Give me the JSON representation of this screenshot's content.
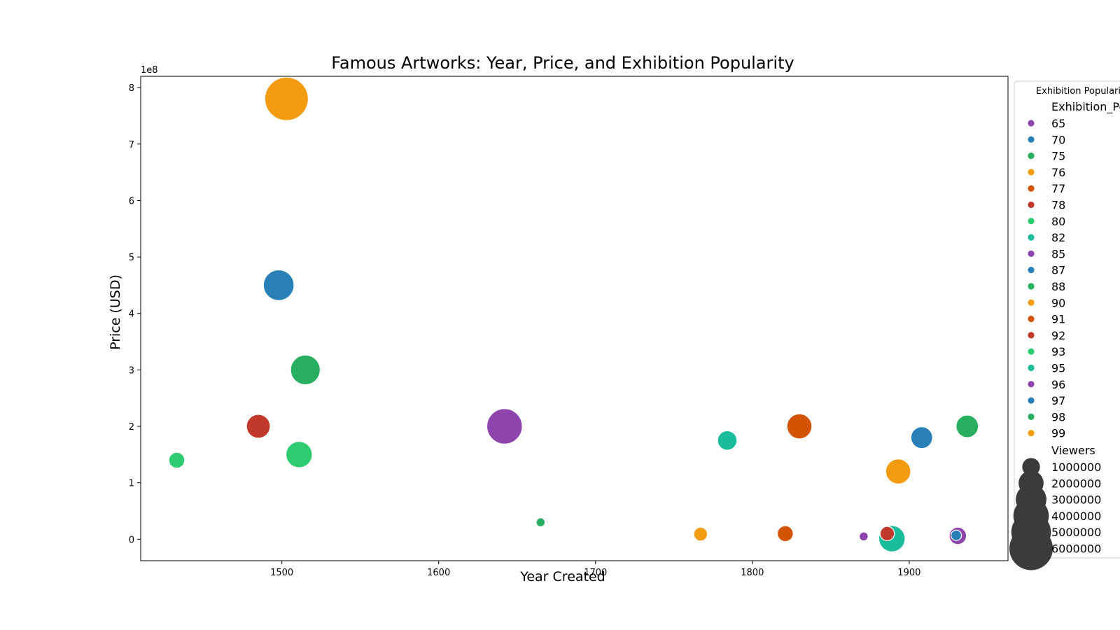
{
  "chart_data": {
    "type": "scatter",
    "title": "Famous Artworks: Year, Price, and Exhibition Popularity",
    "xlabel": "Year Created",
    "ylabel": "Price (USD)",
    "y_offset_text": "1e8",
    "xlim": [
      1410,
      1963
    ],
    "ylim": [
      -0.38,
      8.2
    ],
    "y_unit_multiplier": 100000000,
    "xticks": [
      1500,
      1600,
      1700,
      1800,
      1900
    ],
    "yticks": [
      0,
      1,
      2,
      3,
      4,
      5,
      6,
      7,
      8
    ],
    "grid": false,
    "legend": {
      "placement": "right, outside plot",
      "title": "Exhibition Popularity",
      "hue_header": "Exhibition_Popularity",
      "size_header": "Viewers",
      "hue_entries": [
        {
          "label": "65",
          "color": "#8e44ad"
        },
        {
          "label": "70",
          "color": "#2980b9"
        },
        {
          "label": "75",
          "color": "#27ae60"
        },
        {
          "label": "76",
          "color": "#f39c12"
        },
        {
          "label": "77",
          "color": "#d35400"
        },
        {
          "label": "78",
          "color": "#c0392b"
        },
        {
          "label": "80",
          "color": "#2ecc71"
        },
        {
          "label": "82",
          "color": "#1abc9c"
        },
        {
          "label": "85",
          "color": "#8e44ad"
        },
        {
          "label": "87",
          "color": "#2980b9"
        },
        {
          "label": "88",
          "color": "#27ae60"
        },
        {
          "label": "90",
          "color": "#f39c12"
        },
        {
          "label": "91",
          "color": "#d35400"
        },
        {
          "label": "92",
          "color": "#c0392b"
        },
        {
          "label": "93",
          "color": "#2ecc71"
        },
        {
          "label": "95",
          "color": "#1abc9c"
        },
        {
          "label": "96",
          "color": "#8e44ad"
        },
        {
          "label": "97",
          "color": "#2980b9"
        },
        {
          "label": "98",
          "color": "#27ae60"
        },
        {
          "label": "99",
          "color": "#f39c12"
        }
      ],
      "size_entries": [
        {
          "label": "1000000",
          "value": 1000000
        },
        {
          "label": "2000000",
          "value": 2000000
        },
        {
          "label": "3000000",
          "value": 3000000
        },
        {
          "label": "4000000",
          "value": 4000000
        },
        {
          "label": "5000000",
          "value": 5000000
        },
        {
          "label": "6000000",
          "value": 6000000
        }
      ]
    },
    "points": [
      {
        "year": 1503,
        "price": 7.8,
        "viewers": 6000000,
        "color": "#f39c12"
      },
      {
        "year": 1498,
        "price": 4.5,
        "viewers": 3000000,
        "color": "#2980b9"
      },
      {
        "year": 1515,
        "price": 3.0,
        "viewers": 2800000,
        "color": "#27ae60"
      },
      {
        "year": 1485,
        "price": 2.0,
        "viewers": 1800000,
        "color": "#c0392b"
      },
      {
        "year": 1511,
        "price": 1.5,
        "viewers": 2200000,
        "color": "#2ecc71"
      },
      {
        "year": 1433,
        "price": 1.4,
        "viewers": 800000,
        "color": "#2ecc71"
      },
      {
        "year": 1642,
        "price": 2.0,
        "viewers": 4000000,
        "color": "#8e44ad"
      },
      {
        "year": 1665,
        "price": 0.3,
        "viewers": 250000,
        "color": "#27ae60"
      },
      {
        "year": 1767,
        "price": 0.09,
        "viewers": 600000,
        "color": "#f39c12"
      },
      {
        "year": 1784,
        "price": 1.75,
        "viewers": 1200000,
        "color": "#1abc9c"
      },
      {
        "year": 1821,
        "price": 0.1,
        "viewers": 800000,
        "color": "#d35400"
      },
      {
        "year": 1830,
        "price": 2.0,
        "viewers": 2000000,
        "color": "#d35400"
      },
      {
        "year": 1871,
        "price": 0.05,
        "viewers": 250000,
        "color": "#8e44ad"
      },
      {
        "year": 1889,
        "price": 0.01,
        "viewers": 2200000,
        "color": "#1abc9c"
      },
      {
        "year": 1886,
        "price": 0.1,
        "viewers": 650000,
        "color": "#c0392b"
      },
      {
        "year": 1893,
        "price": 1.2,
        "viewers": 2000000,
        "color": "#f39c12"
      },
      {
        "year": 1908,
        "price": 1.8,
        "viewers": 1500000,
        "color": "#2980b9"
      },
      {
        "year": 1931,
        "price": 0.06,
        "viewers": 950000,
        "color": "#8e44ad"
      },
      {
        "year": 1930,
        "price": 0.07,
        "viewers": 350000,
        "color": "#2980b9"
      },
      {
        "year": 1937,
        "price": 2.0,
        "viewers": 1600000,
        "color": "#27ae60"
      }
    ]
  }
}
